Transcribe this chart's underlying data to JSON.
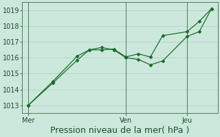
{
  "bg_color": "#cce8dc",
  "grid_color": "#b8d4c8",
  "line_color": "#1a6b2a",
  "marker_color": "#1a6b2a",
  "xlabel": "Pression niveau de la mer( hPa )",
  "xlabel_fontsize": 9,
  "tick_fontsize": 7,
  "ylim": [
    1012.5,
    1019.5
  ],
  "yticks": [
    1013,
    1014,
    1015,
    1016,
    1017,
    1018,
    1019
  ],
  "day_labels": [
    "Mer",
    "Ven",
    "Jeu"
  ],
  "day_positions": [
    0,
    8,
    13
  ],
  "xlim": [
    -0.5,
    15.5
  ],
  "line1_x": [
    0,
    2,
    4,
    5,
    6,
    7,
    8,
    9,
    10,
    11,
    13,
    14,
    15
  ],
  "line1_y": [
    1013.0,
    1014.4,
    1015.85,
    1016.5,
    1016.65,
    1016.5,
    1016.0,
    1015.9,
    1015.55,
    1015.8,
    1017.35,
    1017.65,
    1019.1
  ],
  "line2_x": [
    0,
    2,
    4,
    5,
    6,
    7,
    8,
    9,
    10,
    11,
    13,
    14,
    15
  ],
  "line2_y": [
    1013.0,
    1014.5,
    1016.1,
    1016.5,
    1016.5,
    1016.55,
    1016.05,
    1016.25,
    1016.05,
    1017.4,
    1017.65,
    1018.3,
    1019.1
  ],
  "vline_positions": [
    0,
    8,
    13
  ],
  "spine_color": "#4a7a5a"
}
